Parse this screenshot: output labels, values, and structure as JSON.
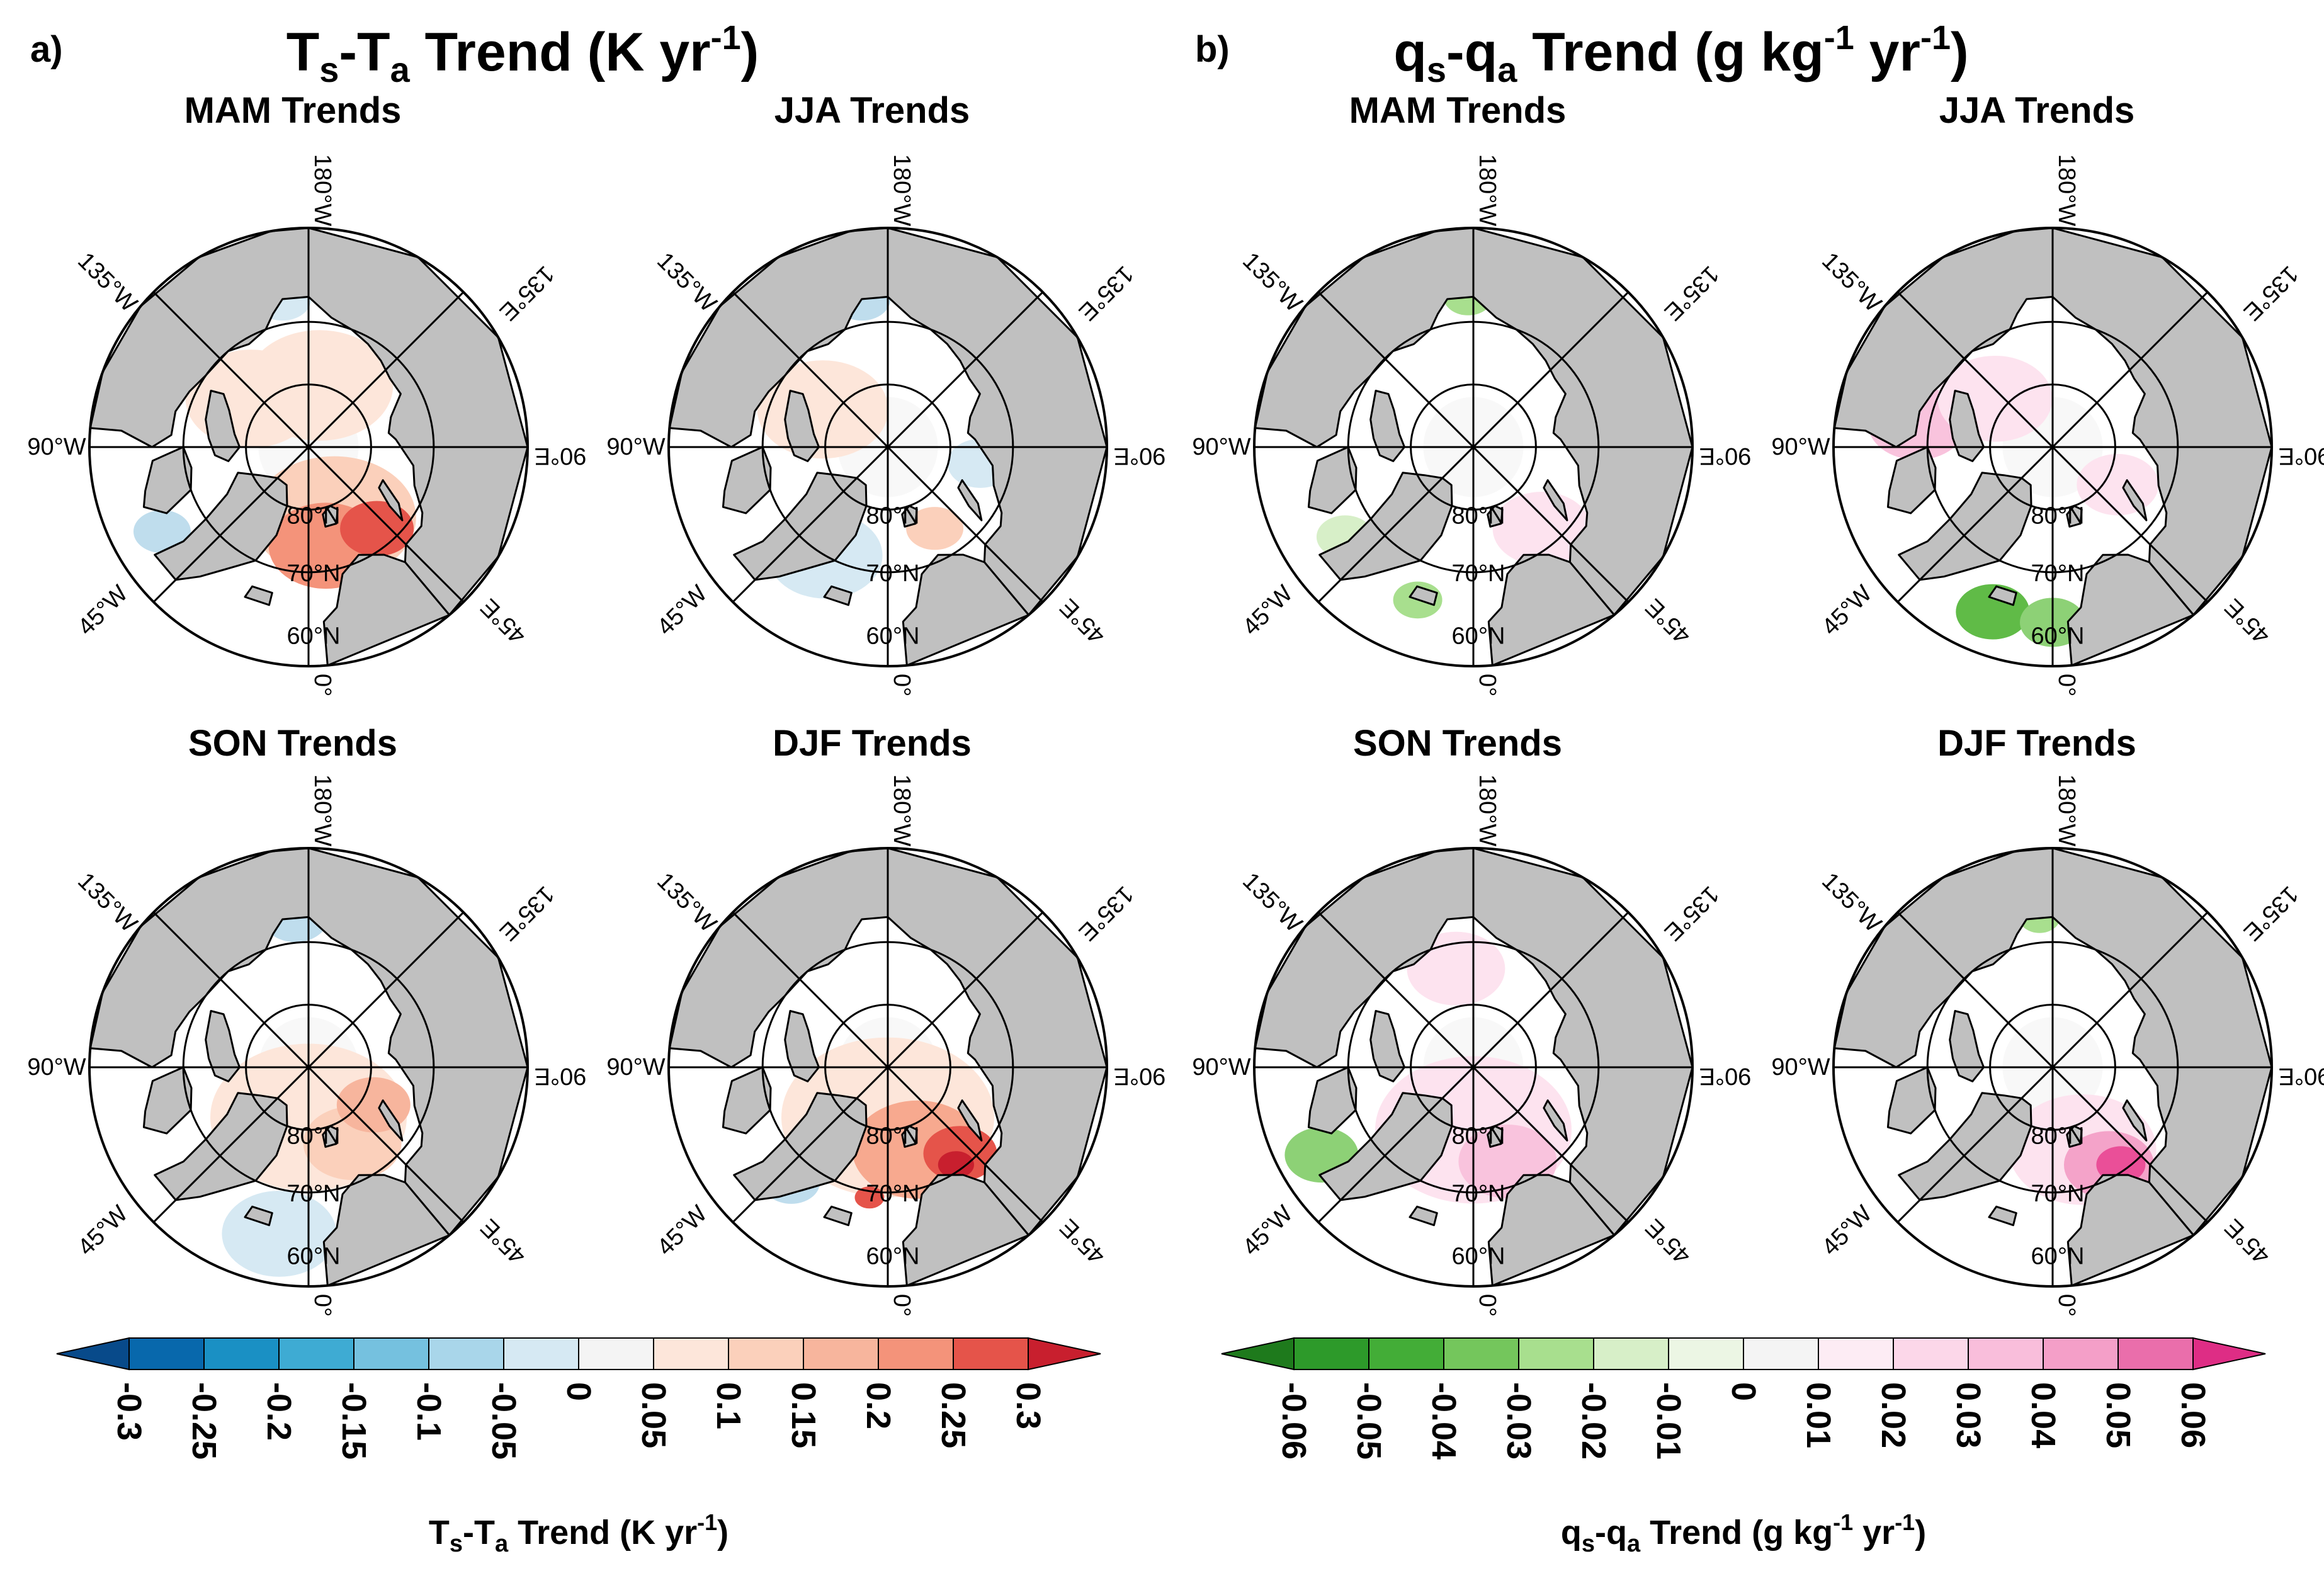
{
  "panels": [
    {
      "tag": "a)",
      "title": "Ts-Ta Trend (K yr-1)",
      "title_parts": {
        "v1": "T",
        "s1": "s",
        "dash": "-",
        "v2": "T",
        "s2": "a",
        "tail": " Trend (K yr",
        "exp": "-1",
        "close": ")"
      },
      "maps": [
        {
          "season": "MAM Trends",
          "blobs": [
            {
              "lon": 20,
              "lat": 78,
              "color": "#fbd0bb",
              "size": 1.0
            },
            {
              "lon": 10,
              "lat": 74,
              "color": "#f4937a",
              "size": 0.7
            },
            {
              "lon": 40,
              "lat": 73,
              "color": "#e5544a",
              "size": 0.45
            },
            {
              "lon": 170,
              "lat": 80,
              "color": "#fde6da",
              "size": 0.9
            },
            {
              "lon": -130,
              "lat": 78,
              "color": "#fde6da",
              "size": 0.8
            },
            {
              "lon": -60,
              "lat": 63,
              "color": "#bfdded",
              "size": 0.35
            },
            {
              "lon": -170,
              "lat": 66,
              "color": "#d6e9f3",
              "size": 0.35
            }
          ]
        },
        {
          "season": "JJA Trends",
          "blobs": [
            {
              "lon": -120,
              "lat": 78,
              "color": "#fde6da",
              "size": 0.8
            },
            {
              "lon": 30,
              "lat": 75,
              "color": "#fbd0bb",
              "size": 0.35
            },
            {
              "lon": -30,
              "lat": 70,
              "color": "#d6e9f3",
              "size": 0.7
            },
            {
              "lon": -170,
              "lat": 66,
              "color": "#bfdded",
              "size": 0.35
            },
            {
              "lon": 80,
              "lat": 75,
              "color": "#d6e9f3",
              "size": 0.4
            }
          ]
        },
        {
          "season": "SON Trends",
          "blobs": [
            {
              "lon": 0,
              "lat": 82,
              "color": "#fde6da",
              "size": 1.2
            },
            {
              "lon": 30,
              "lat": 76,
              "color": "#fbd0bb",
              "size": 0.6
            },
            {
              "lon": 60,
              "lat": 78,
              "color": "#f7b59d",
              "size": 0.45
            },
            {
              "lon": -10,
              "lat": 63,
              "color": "#d6e9f3",
              "size": 0.7
            },
            {
              "lon": -175,
              "lat": 66,
              "color": "#bfdded",
              "size": 0.4
            }
          ]
        },
        {
          "season": "DJF Trends",
          "blobs": [
            {
              "lon": 0,
              "lat": 82,
              "color": "#fde6da",
              "size": 1.3
            },
            {
              "lon": 20,
              "lat": 76,
              "color": "#f7a98f",
              "size": 0.8
            },
            {
              "lon": 40,
              "lat": 72,
              "color": "#e5544a",
              "size": 0.45
            },
            {
              "lon": 35,
              "lat": 71,
              "color": "#c81f2e",
              "size": 0.22
            },
            {
              "lon": -8,
              "lat": 69,
              "color": "#e5544a",
              "size": 0.18
            },
            {
              "lon": -40,
              "lat": 66,
              "color": "#bfdded",
              "size": 0.35
            }
          ]
        }
      ],
      "colorbar": {
        "ticks": [
          "-0.3",
          "-0.25",
          "-0.2",
          "-0.15",
          "-0.1",
          "-0.05",
          "0",
          "0.05",
          "0.1",
          "0.15",
          "0.2",
          "0.25",
          "0.3"
        ],
        "colors": [
          "#0868ac",
          "#1a90c4",
          "#3eabd3",
          "#75c1df",
          "#a9d6ea",
          "#d6e9f3",
          "#f4f4f4",
          "#fde6da",
          "#fbd0bb",
          "#f7b59d",
          "#f4937a",
          "#e5544a"
        ],
        "under_color": "#084a8a",
        "over_color": "#c81f2e",
        "label_parts": {
          "v1": "T",
          "s1": "s",
          "dash": "-",
          "v2": "T",
          "s2": "a",
          "tail": " Trend (K yr",
          "exp": "-1",
          "close": ")"
        }
      }
    },
    {
      "tag": "b)",
      "title": "qs-qa Trend (g kg-1 yr-1)",
      "title_parts": {
        "v1": "q",
        "s1": "s",
        "dash": "-",
        "v2": "q",
        "s2": "a",
        "tail": " Trend (g kg",
        "exp": "-1",
        "mid": " yr",
        "exp2": "-1",
        "close": ")"
      },
      "maps": [
        {
          "season": "MAM Trends",
          "blobs": [
            {
              "lon": 40,
              "lat": 73,
              "color": "#fde3ef",
              "size": 0.6
            },
            {
              "lon": -20,
              "lat": 64,
              "color": "#a8df8e",
              "size": 0.3
            },
            {
              "lon": -55,
              "lat": 65,
              "color": "#d7efc8",
              "size": 0.35
            },
            {
              "lon": -178,
              "lat": 66,
              "color": "#a8df8e",
              "size": 0.3
            }
          ]
        },
        {
          "season": "JJA Trends",
          "blobs": [
            {
              "lon": -100,
              "lat": 68,
              "color": "#f9c3dd",
              "size": 0.6
            },
            {
              "lon": -20,
              "lat": 62,
              "color": "#60bb47",
              "size": 0.45
            },
            {
              "lon": 0,
              "lat": 62,
              "color": "#8dd176",
              "size": 0.4
            },
            {
              "lon": -130,
              "lat": 78,
              "color": "#fde3ef",
              "size": 0.7
            },
            {
              "lon": 60,
              "lat": 78,
              "color": "#fde3ef",
              "size": 0.5
            }
          ]
        },
        {
          "season": "SON Trends",
          "blobs": [
            {
              "lon": 0,
              "lat": 80,
              "color": "#fde3ef",
              "size": 1.2
            },
            {
              "lon": 20,
              "lat": 74,
              "color": "#f9c3dd",
              "size": 0.6
            },
            {
              "lon": -60,
              "lat": 62,
              "color": "#8dd176",
              "size": 0.45
            },
            {
              "lon": -170,
              "lat": 74,
              "color": "#fde3ef",
              "size": 0.6
            }
          ]
        },
        {
          "season": "DJF Trends",
          "blobs": [
            {
              "lon": 20,
              "lat": 76,
              "color": "#fde3ef",
              "size": 0.9
            },
            {
              "lon": 30,
              "lat": 72,
              "color": "#f4a3c9",
              "size": 0.55
            },
            {
              "lon": 35,
              "lat": 71,
              "color": "#ea4f98",
              "size": 0.3
            },
            {
              "lon": -175,
              "lat": 66,
              "color": "#a8df8e",
              "size": 0.25
            }
          ]
        }
      ],
      "colorbar": {
        "ticks": [
          "-0.06",
          "-0.05",
          "-0.04",
          "-0.03",
          "-0.02",
          "-0.01",
          "0",
          "0.01",
          "0.02",
          "0.03",
          "0.04",
          "0.05",
          "0.06"
        ],
        "colors": [
          "#2d9a2a",
          "#43ad37",
          "#74c65c",
          "#a8df8e",
          "#d7efc8",
          "#ecf6e4",
          "#f4f4f4",
          "#fdecf4",
          "#fcd7e9",
          "#f9bedb",
          "#f49fc8",
          "#ea6eab"
        ],
        "under_color": "#1e7a1c",
        "over_color": "#de2d85",
        "label_parts": {
          "v1": "q",
          "s1": "s",
          "dash": "-",
          "v2": "q",
          "s2": "a",
          "tail": " Trend (g kg",
          "exp": "-1",
          "mid": " yr",
          "exp2": "-1",
          "close": ")"
        }
      }
    }
  ],
  "map_labels": {
    "lon_180": "180°W",
    "lon_135w": "135°W",
    "lon_135e": "135°E",
    "lon_90w": "90°W",
    "lon_90e": "90°E",
    "lon_45w": "45°W",
    "lon_45e": "45°E",
    "lon_0": "0°",
    "lat_80": "80°N",
    "lat_70": "70°N",
    "lat_60": "60°N"
  },
  "colors": {
    "land": "#c0c0c0",
    "ocean": "#ffffff",
    "coast": "#000000"
  }
}
